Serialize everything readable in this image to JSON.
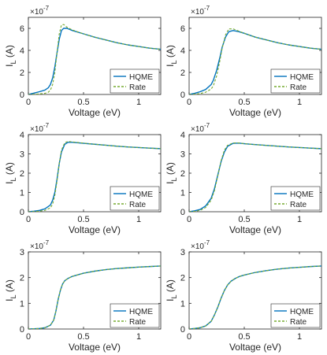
{
  "figure": {
    "multiplier_text": "×10",
    "multiplier_exponent": "-7"
  },
  "chart_data": [
    {
      "type": "line",
      "xlabel": "Voltage (eV)",
      "ylabel": "I_L (A)",
      "ylabel_main": "I",
      "ylabel_sub": "L",
      "ylabel_unit": "(A)",
      "xlim": [
        0,
        1.2
      ],
      "ylim": [
        0,
        7e-07
      ],
      "xticks": [
        0,
        0.5,
        1
      ],
      "xtick_labels": [
        "0",
        "0.5",
        "1"
      ],
      "yticks": [
        0,
        2e-07,
        4e-07,
        6e-07
      ],
      "ytick_labels": [
        "0",
        "2",
        "4",
        "6"
      ],
      "y_multiplier": "×10^-7",
      "legend_position": "bottom-right",
      "grid": false,
      "series": [
        {
          "name": "HQME",
          "color": "#0072BD",
          "style": "solid",
          "x": [
            0,
            0.05,
            0.1,
            0.15,
            0.18,
            0.2,
            0.22,
            0.24,
            0.26,
            0.28,
            0.3,
            0.32,
            0.35,
            0.4,
            0.5,
            0.6,
            0.7,
            0.8,
            0.9,
            1.0,
            1.1,
            1.2
          ],
          "y": [
            0,
            1.2e-08,
            2.5e-08,
            4e-08,
            6e-08,
            9e-08,
            1.5e-07,
            2.5e-07,
            3.8e-07,
            5e-07,
            5.8e-07,
            6e-07,
            6e-07,
            5.8e-07,
            5.5e-07,
            5.2e-07,
            4.95e-07,
            4.7e-07,
            4.5e-07,
            4.35e-07,
            4.2e-07,
            4.1e-07
          ]
        },
        {
          "name": "Rate",
          "color": "#77AC30",
          "style": "dashed",
          "x": [
            0,
            0.05,
            0.1,
            0.15,
            0.18,
            0.2,
            0.22,
            0.24,
            0.26,
            0.28,
            0.3,
            0.32,
            0.35,
            0.4,
            0.5,
            0.6,
            0.7,
            0.8,
            0.9,
            1.0,
            1.1,
            1.2
          ],
          "y": [
            0,
            2e-09,
            5e-09,
            1e-08,
            2e-08,
            4e-08,
            9e-08,
            2e-07,
            3.8e-07,
            5.5e-07,
            6.3e-07,
            6.35e-07,
            6.1e-07,
            5.85e-07,
            5.5e-07,
            5.2e-07,
            4.95e-07,
            4.7e-07,
            4.5e-07,
            4.35e-07,
            4.2e-07,
            4.1e-07
          ]
        }
      ]
    },
    {
      "type": "line",
      "xlabel": "Voltage (eV)",
      "ylabel": "I_L (A)",
      "ylabel_main": "I",
      "ylabel_sub": "L",
      "ylabel_unit": "(A)",
      "xlim": [
        0,
        1.2
      ],
      "ylim": [
        0,
        7e-07
      ],
      "xticks": [
        0,
        0.5,
        1
      ],
      "xtick_labels": [
        "0",
        "0.5",
        "1"
      ],
      "yticks": [
        0,
        2e-07,
        4e-07,
        6e-07
      ],
      "ytick_labels": [
        "0",
        "2",
        "4",
        "6"
      ],
      "y_multiplier": "×10^-7",
      "legend_position": "bottom-right",
      "grid": false,
      "series": [
        {
          "name": "HQME",
          "color": "#0072BD",
          "style": "solid",
          "x": [
            0,
            0.05,
            0.1,
            0.15,
            0.2,
            0.22,
            0.25,
            0.28,
            0.3,
            0.33,
            0.36,
            0.4,
            0.45,
            0.5,
            0.6,
            0.7,
            0.8,
            0.9,
            1.0,
            1.1,
            1.2
          ],
          "y": [
            0,
            1e-08,
            2.5e-08,
            4.5e-08,
            9e-08,
            1.3e-07,
            2.2e-07,
            3.4e-07,
            4.3e-07,
            5.2e-07,
            5.7e-07,
            5.8e-07,
            5.7e-07,
            5.55e-07,
            5.2e-07,
            4.95e-07,
            4.7e-07,
            4.5e-07,
            4.35e-07,
            4.2e-07,
            4.1e-07
          ]
        },
        {
          "name": "Rate",
          "color": "#77AC30",
          "style": "dashed",
          "x": [
            0,
            0.05,
            0.1,
            0.15,
            0.2,
            0.22,
            0.25,
            0.28,
            0.3,
            0.33,
            0.36,
            0.4,
            0.45,
            0.5,
            0.6,
            0.7,
            0.8,
            0.9,
            1.0,
            1.1,
            1.2
          ],
          "y": [
            0,
            3e-09,
            8e-09,
            2e-08,
            5e-08,
            8e-08,
            1.7e-07,
            3.1e-07,
            4.2e-07,
            5.4e-07,
            5.95e-07,
            5.95e-07,
            5.75e-07,
            5.55e-07,
            5.2e-07,
            4.95e-07,
            4.7e-07,
            4.5e-07,
            4.35e-07,
            4.2e-07,
            4.1e-07
          ]
        }
      ]
    },
    {
      "type": "line",
      "xlabel": "Voltage (eV)",
      "ylabel": "I_L (A)",
      "ylabel_main": "I",
      "ylabel_sub": "L",
      "ylabel_unit": "(A)",
      "xlim": [
        0,
        1.2
      ],
      "ylim": [
        0,
        4e-07
      ],
      "xticks": [
        0,
        0.5,
        1
      ],
      "xtick_labels": [
        "0",
        "0.5",
        "1"
      ],
      "yticks": [
        0,
        1e-07,
        2e-07,
        3e-07,
        4e-07
      ],
      "ytick_labels": [
        "0",
        "1",
        "2",
        "3",
        "4"
      ],
      "y_multiplier": "×10^-7",
      "legend_position": "bottom-right",
      "grid": false,
      "series": [
        {
          "name": "HQME",
          "color": "#0072BD",
          "style": "solid",
          "x": [
            0,
            0.05,
            0.1,
            0.15,
            0.2,
            0.22,
            0.24,
            0.26,
            0.28,
            0.3,
            0.33,
            0.36,
            0.4,
            0.5,
            0.6,
            0.7,
            0.8,
            0.9,
            1.0,
            1.1,
            1.2
          ],
          "y": [
            0,
            3e-09,
            7e-09,
            1.5e-08,
            3.5e-08,
            6e-08,
            1e-07,
            1.7e-07,
            2.5e-07,
            3.1e-07,
            3.5e-07,
            3.6e-07,
            3.6e-07,
            3.55e-07,
            3.5e-07,
            3.45e-07,
            3.4e-07,
            3.36e-07,
            3.33e-07,
            3.3e-07,
            3.27e-07
          ]
        },
        {
          "name": "Rate",
          "color": "#77AC30",
          "style": "dashed",
          "x": [
            0,
            0.05,
            0.1,
            0.15,
            0.2,
            0.22,
            0.24,
            0.26,
            0.28,
            0.3,
            0.33,
            0.36,
            0.4,
            0.5,
            0.6,
            0.7,
            0.8,
            0.9,
            1.0,
            1.1,
            1.2
          ],
          "y": [
            0,
            1e-09,
            3e-09,
            7e-09,
            2e-08,
            4e-08,
            8.5e-08,
            1.6e-07,
            2.5e-07,
            3.2e-07,
            3.58e-07,
            3.65e-07,
            3.62e-07,
            3.56e-07,
            3.5e-07,
            3.45e-07,
            3.4e-07,
            3.36e-07,
            3.33e-07,
            3.3e-07,
            3.27e-07
          ]
        }
      ]
    },
    {
      "type": "line",
      "xlabel": "Voltage (eV)",
      "ylabel": "I_L (A)",
      "ylabel_main": "I",
      "ylabel_sub": "L",
      "ylabel_unit": "(A)",
      "xlim": [
        0,
        1.2
      ],
      "ylim": [
        0,
        4e-07
      ],
      "xticks": [
        0,
        0.5,
        1
      ],
      "xtick_labels": [
        "0",
        "0.5",
        "1"
      ],
      "yticks": [
        0,
        1e-07,
        2e-07,
        3e-07,
        4e-07
      ],
      "ytick_labels": [
        "0",
        "1",
        "2",
        "3",
        "4"
      ],
      "y_multiplier": "×10^-7",
      "legend_position": "bottom-right",
      "grid": false,
      "series": [
        {
          "name": "HQME",
          "color": "#0072BD",
          "style": "solid",
          "x": [
            0,
            0.05,
            0.1,
            0.15,
            0.2,
            0.23,
            0.26,
            0.29,
            0.32,
            0.35,
            0.4,
            0.45,
            0.5,
            0.6,
            0.7,
            0.8,
            0.9,
            1.0,
            1.1,
            1.2
          ],
          "y": [
            0,
            5e-09,
            1.2e-08,
            3e-08,
            7e-08,
            1.2e-07,
            1.9e-07,
            2.6e-07,
            3.1e-07,
            3.4e-07,
            3.55e-07,
            3.56e-07,
            3.53e-07,
            3.48e-07,
            3.44e-07,
            3.4e-07,
            3.36e-07,
            3.33e-07,
            3.3e-07,
            3.27e-07
          ]
        },
        {
          "name": "Rate",
          "color": "#77AC30",
          "style": "dashed",
          "x": [
            0,
            0.05,
            0.1,
            0.15,
            0.2,
            0.23,
            0.26,
            0.29,
            0.32,
            0.35,
            0.4,
            0.45,
            0.5,
            0.6,
            0.7,
            0.8,
            0.9,
            1.0,
            1.1,
            1.2
          ],
          "y": [
            0,
            2e-09,
            7e-09,
            2.2e-08,
            6e-08,
            1.1e-07,
            1.85e-07,
            2.65e-07,
            3.2e-07,
            3.45e-07,
            3.57e-07,
            3.57e-07,
            3.53e-07,
            3.48e-07,
            3.44e-07,
            3.4e-07,
            3.36e-07,
            3.33e-07,
            3.3e-07,
            3.27e-07
          ]
        }
      ]
    },
    {
      "type": "line",
      "xlabel": "Voltage (eV)",
      "ylabel": "I_L (A)",
      "ylabel_main": "I",
      "ylabel_sub": "L",
      "ylabel_unit": "(A)",
      "xlim": [
        0,
        1.2
      ],
      "ylim": [
        0,
        3e-07
      ],
      "xticks": [
        0,
        0.5,
        1
      ],
      "xtick_labels": [
        "0",
        "0.5",
        "1"
      ],
      "yticks": [
        0,
        1e-07,
        2e-07,
        3e-07
      ],
      "ytick_labels": [
        "0",
        "1",
        "2",
        "3"
      ],
      "y_multiplier": "×10^-7",
      "legend_position": "bottom-right",
      "grid": false,
      "series": [
        {
          "name": "HQME",
          "color": "#0072BD",
          "style": "solid",
          "x": [
            0,
            0.05,
            0.1,
            0.15,
            0.2,
            0.23,
            0.25,
            0.27,
            0.29,
            0.31,
            0.33,
            0.36,
            0.4,
            0.5,
            0.6,
            0.7,
            0.8,
            0.9,
            1.0,
            1.1,
            1.2
          ],
          "y": [
            0,
            1e-09,
            2e-09,
            5e-09,
            1.5e-08,
            3.5e-08,
            7e-08,
            1.15e-07,
            1.5e-07,
            1.75e-07,
            1.88e-07,
            1.97e-07,
            2.05e-07,
            2.17e-07,
            2.25e-07,
            2.31e-07,
            2.35e-07,
            2.38e-07,
            2.41e-07,
            2.43e-07,
            2.45e-07
          ]
        },
        {
          "name": "Rate",
          "color": "#77AC30",
          "style": "dashed",
          "x": [
            0,
            0.05,
            0.1,
            0.15,
            0.2,
            0.23,
            0.25,
            0.27,
            0.29,
            0.31,
            0.33,
            0.36,
            0.4,
            0.5,
            0.6,
            0.7,
            0.8,
            0.9,
            1.0,
            1.1,
            1.2
          ],
          "y": [
            0,
            1e-09,
            2e-09,
            5e-09,
            1.5e-08,
            3.5e-08,
            7e-08,
            1.15e-07,
            1.5e-07,
            1.75e-07,
            1.88e-07,
            1.97e-07,
            2.05e-07,
            2.17e-07,
            2.25e-07,
            2.31e-07,
            2.35e-07,
            2.38e-07,
            2.41e-07,
            2.43e-07,
            2.45e-07
          ]
        }
      ]
    },
    {
      "type": "line",
      "xlabel": "Voltage (eV)",
      "ylabel": "I_L (A)",
      "ylabel_main": "I",
      "ylabel_sub": "L",
      "ylabel_unit": "(A)",
      "xlim": [
        0,
        1.2
      ],
      "ylim": [
        0,
        3e-07
      ],
      "xticks": [
        0,
        0.5,
        1
      ],
      "xtick_labels": [
        "0",
        "0.5",
        "1"
      ],
      "yticks": [
        0,
        1e-07,
        2e-07,
        3e-07
      ],
      "ytick_labels": [
        "0",
        "1",
        "2",
        "3"
      ],
      "y_multiplier": "×10^-7",
      "legend_position": "bottom-right",
      "grid": false,
      "series": [
        {
          "name": "HQME",
          "color": "#0072BD",
          "style": "solid",
          "x": [
            0,
            0.05,
            0.1,
            0.15,
            0.2,
            0.23,
            0.26,
            0.29,
            0.32,
            0.35,
            0.38,
            0.42,
            0.46,
            0.5,
            0.6,
            0.7,
            0.8,
            0.9,
            1.0,
            1.1,
            1.2
          ],
          "y": [
            0,
            2e-09,
            5e-09,
            1.2e-08,
            3e-08,
            5.5e-08,
            8.5e-08,
            1.2e-07,
            1.5e-07,
            1.72e-07,
            1.86e-07,
            1.97e-07,
            2.05e-07,
            2.1e-07,
            2.2e-07,
            2.27e-07,
            2.33e-07,
            2.37e-07,
            2.4e-07,
            2.43e-07,
            2.45e-07
          ]
        },
        {
          "name": "Rate",
          "color": "#77AC30",
          "style": "dashed",
          "x": [
            0,
            0.05,
            0.1,
            0.15,
            0.2,
            0.23,
            0.26,
            0.29,
            0.32,
            0.35,
            0.38,
            0.42,
            0.46,
            0.5,
            0.6,
            0.7,
            0.8,
            0.9,
            1.0,
            1.1,
            1.2
          ],
          "y": [
            0,
            2e-09,
            5e-09,
            1.2e-08,
            3e-08,
            5.5e-08,
            8.5e-08,
            1.2e-07,
            1.5e-07,
            1.72e-07,
            1.86e-07,
            1.97e-07,
            2.05e-07,
            2.1e-07,
            2.2e-07,
            2.27e-07,
            2.33e-07,
            2.37e-07,
            2.4e-07,
            2.43e-07,
            2.45e-07
          ]
        }
      ]
    }
  ]
}
